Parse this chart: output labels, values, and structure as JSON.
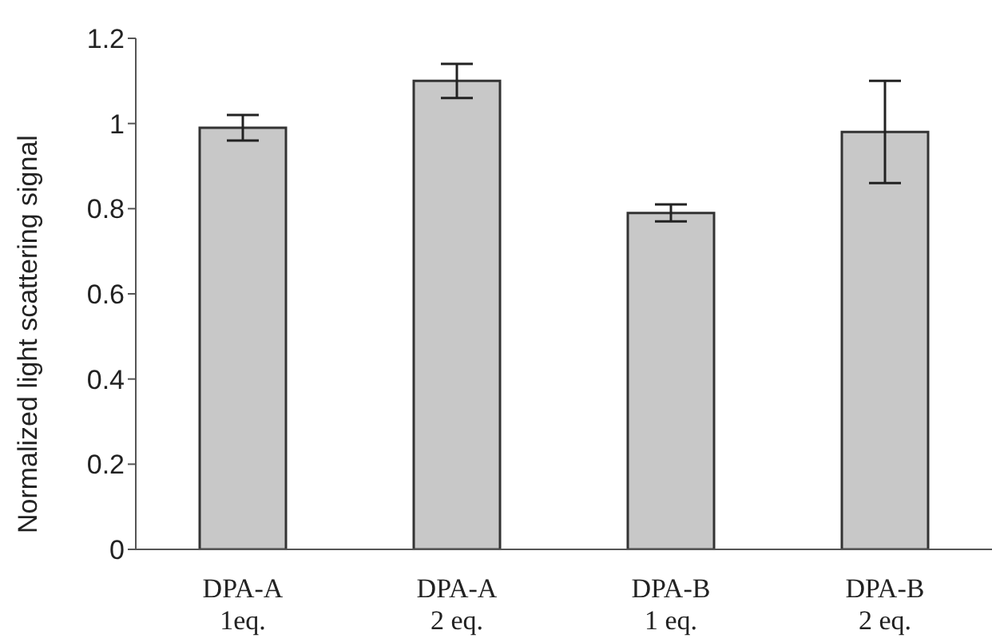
{
  "chart_data": {
    "type": "bar",
    "ylabel": "Normalized light scattering signal",
    "categories": [
      "DPA-A\n1eq.",
      "DPA-A\n2 eq.",
      "DPA-B\n1 eq.",
      "DPA-B\n2 eq."
    ],
    "values": [
      0.99,
      1.1,
      0.79,
      0.98
    ],
    "errors": [
      0.03,
      0.04,
      0.02,
      0.12
    ],
    "color": "#c8c8c8",
    "ylim": [
      0,
      1.2
    ],
    "yticks": [
      0,
      0.2,
      0.4,
      0.6,
      0.8,
      1,
      1.2
    ],
    "grid": false
  }
}
